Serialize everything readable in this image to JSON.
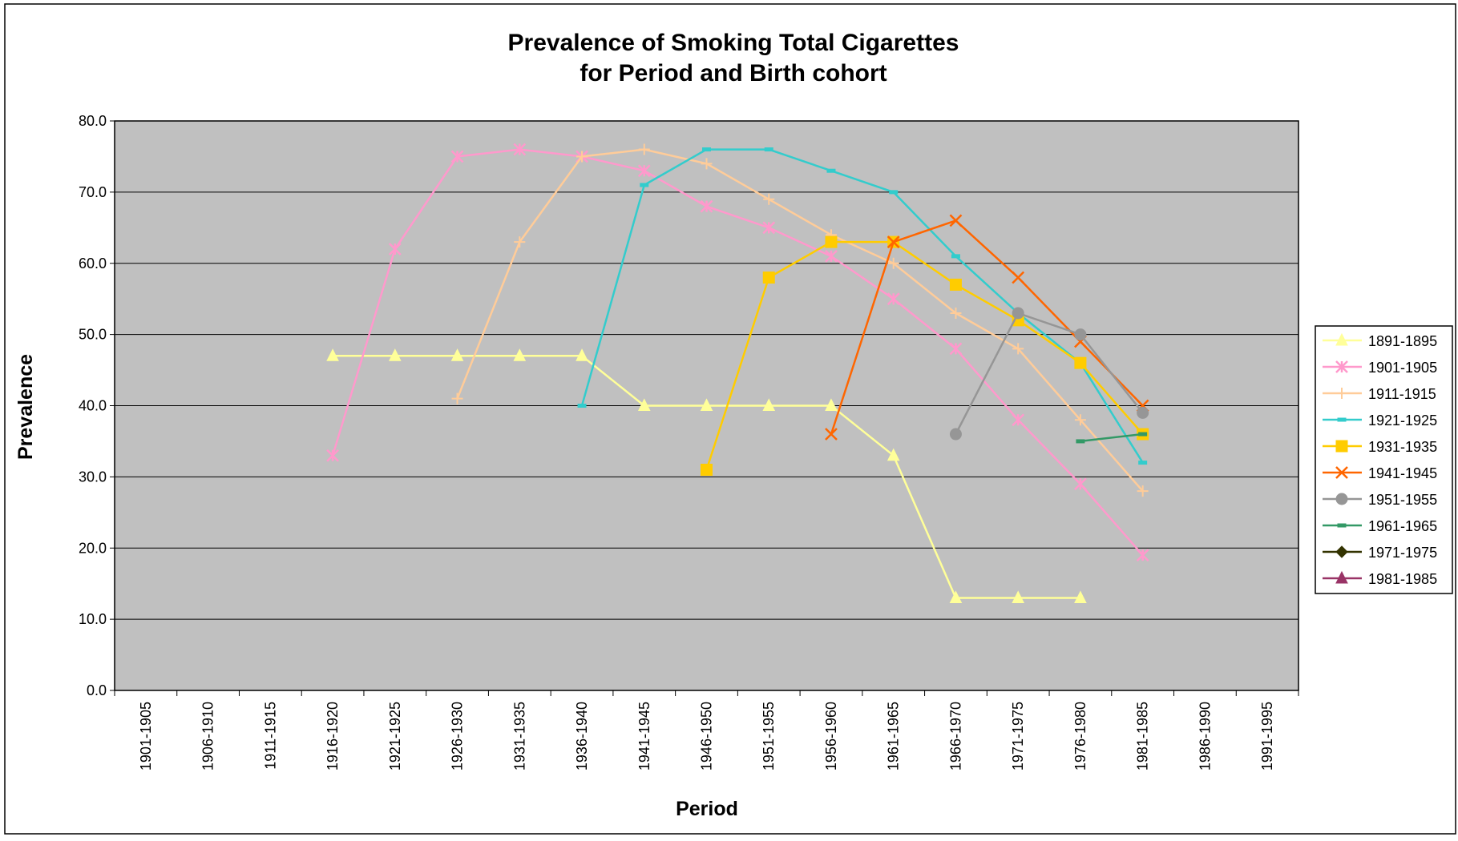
{
  "chart_data": {
    "type": "line",
    "title_lines": [
      "Prevalence of Smoking Total Cigarettes",
      "for Period and Birth cohort"
    ],
    "xlabel": "Period",
    "ylabel": "Prevalence",
    "categories": [
      "1901-1905",
      "1906-1910",
      "1911-1915",
      "1916-1920",
      "1921-1925",
      "1926-1930",
      "1931-1935",
      "1936-1940",
      "1941-1945",
      "1946-1950",
      "1951-1955",
      "1956-1960",
      "1961-1965",
      "1966-1970",
      "1971-1975",
      "1976-1980",
      "1981-1985",
      "1986-1990",
      "1991-1995"
    ],
    "ylim": [
      0,
      80
    ],
    "yticks": [
      "0.0",
      "10.0",
      "20.0",
      "30.0",
      "40.0",
      "50.0",
      "60.0",
      "70.0",
      "80.0"
    ],
    "grid": true,
    "legend_position": "right",
    "plot_background": "#C0C0C0",
    "series": [
      {
        "name": "1891-1895",
        "color": "#FFFF99",
        "marker": "triangle",
        "values": [
          null,
          null,
          null,
          47,
          47,
          47,
          47,
          47,
          40,
          40,
          40,
          40,
          33,
          13,
          13,
          13,
          null,
          null,
          null
        ]
      },
      {
        "name": "1901-1905",
        "color": "#FF99CC",
        "marker": "star",
        "values": [
          null,
          null,
          null,
          33,
          62,
          75,
          76,
          75,
          73,
          68,
          65,
          61,
          55,
          48,
          38,
          29,
          19,
          null,
          null
        ]
      },
      {
        "name": "1911-1915",
        "color": "#FFCC99",
        "marker": "plus",
        "values": [
          null,
          null,
          null,
          null,
          null,
          41,
          63,
          75,
          76,
          74,
          69,
          64,
          60,
          53,
          48,
          38,
          28,
          null,
          null
        ]
      },
      {
        "name": "1921-1925",
        "color": "#33CCCC",
        "marker": "dash",
        "values": [
          null,
          null,
          null,
          null,
          null,
          null,
          null,
          40,
          71,
          76,
          76,
          73,
          70,
          61,
          53,
          46,
          32,
          null,
          null
        ]
      },
      {
        "name": "1931-1935",
        "color": "#FFCC00",
        "marker": "square",
        "values": [
          null,
          null,
          null,
          null,
          null,
          null,
          null,
          null,
          null,
          31,
          58,
          63,
          63,
          57,
          52,
          46,
          36,
          null,
          null
        ]
      },
      {
        "name": "1941-1945",
        "color": "#FF6600",
        "marker": "x",
        "values": [
          null,
          null,
          null,
          null,
          null,
          null,
          null,
          null,
          null,
          null,
          null,
          36,
          63,
          66,
          58,
          49,
          40,
          null,
          null
        ]
      },
      {
        "name": "1951-1955",
        "color": "#969696",
        "marker": "circle",
        "values": [
          null,
          null,
          null,
          null,
          null,
          null,
          null,
          null,
          null,
          null,
          null,
          null,
          null,
          36,
          53,
          50,
          39,
          null,
          null
        ]
      },
      {
        "name": "1961-1965",
        "color": "#339966",
        "marker": "dash",
        "values": [
          null,
          null,
          null,
          null,
          null,
          null,
          null,
          null,
          null,
          null,
          null,
          null,
          null,
          null,
          null,
          35,
          36,
          null,
          null
        ]
      },
      {
        "name": "1971-1975",
        "color": "#333300",
        "marker": "diamond",
        "values": [
          null,
          null,
          null,
          null,
          null,
          null,
          null,
          null,
          null,
          null,
          null,
          null,
          null,
          null,
          null,
          null,
          null,
          null,
          null
        ]
      },
      {
        "name": "1981-1985",
        "color": "#993366",
        "marker": "triangle",
        "values": [
          null,
          null,
          null,
          null,
          null,
          null,
          null,
          null,
          null,
          null,
          null,
          null,
          null,
          null,
          null,
          null,
          null,
          null,
          null
        ]
      }
    ]
  }
}
